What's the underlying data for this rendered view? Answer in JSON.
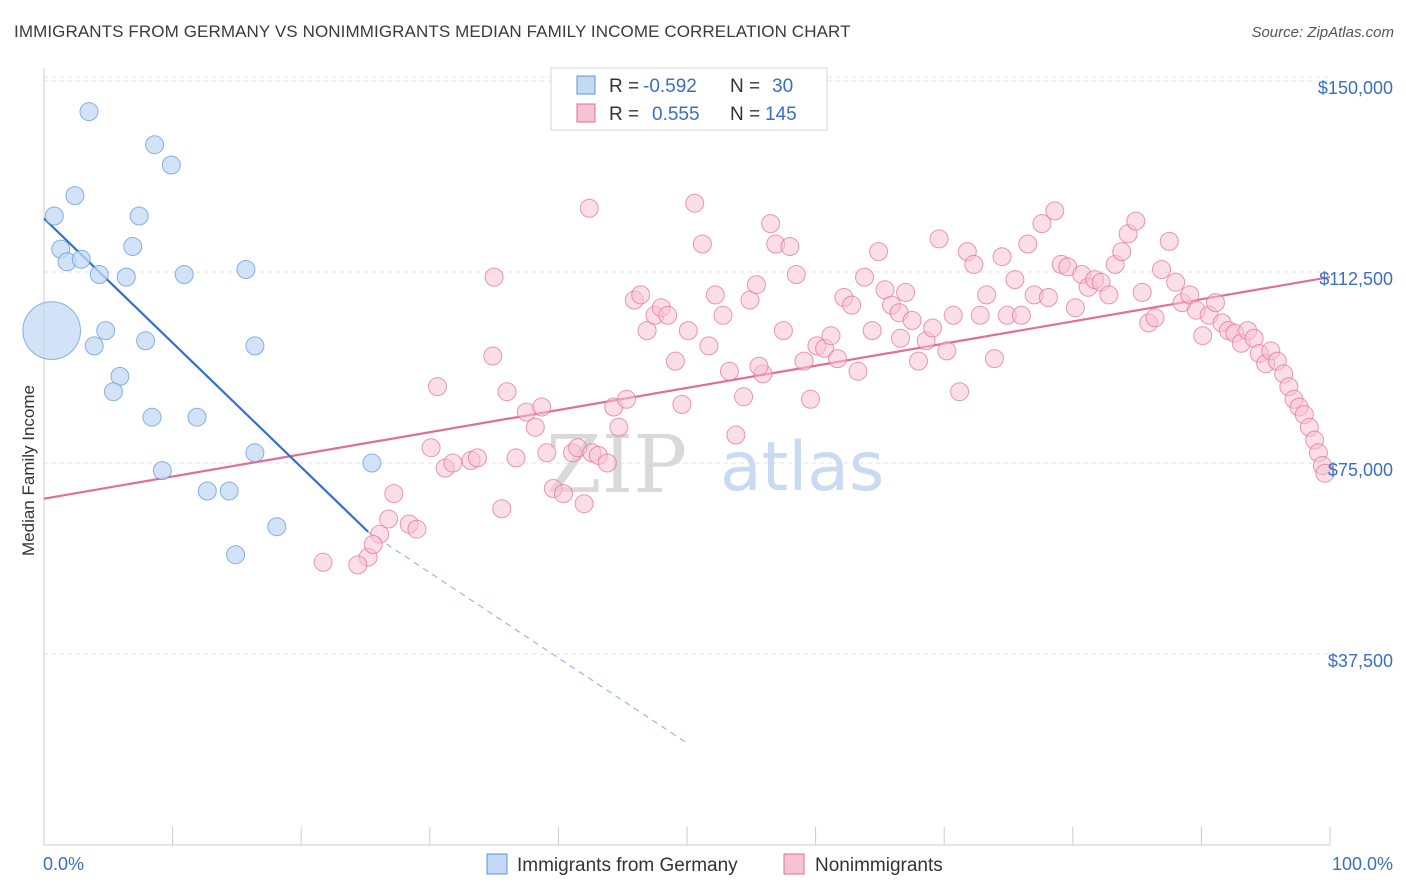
{
  "title": "IMMIGRANTS FROM GERMANY VS NONIMMIGRANTS MEDIAN FAMILY INCOME CORRELATION CHART",
  "source": "Source: ZipAtlas.com",
  "colors": {
    "blue": "#5b93d8",
    "blue_fill": "#c4d9f4",
    "pink": "#e26d97",
    "pink_fill": "#f7c3d4",
    "tick_text": "#3a6fc4"
  },
  "chart_data": {
    "type": "scatter",
    "title": "IMMIGRANTS FROM GERMANY VS NONIMMIGRANTS MEDIAN FAMILY INCOME CORRELATION CHART",
    "xlabel": "",
    "ylabel": "Median Family Income",
    "xlim": [
      0,
      100
    ],
    "ylim": [
      20000,
      157000
    ],
    "x_tick_labels": [
      "0.0%",
      "100.0%"
    ],
    "y_ticks": [
      37500,
      75000,
      112500,
      150000
    ],
    "y_tick_labels": [
      "$37,500",
      "$75,000",
      "$112,500",
      "$150,000"
    ],
    "grid": true,
    "legend": {
      "position": "top-center",
      "entries": [
        {
          "r_label": "R =",
          "r_value": "-0.592",
          "n_label": "N =",
          "n_value": "30"
        },
        {
          "r_label": "R =",
          "r_value": "0.555",
          "n_label": "N =",
          "n_value": "145"
        }
      ]
    },
    "bottom_legend": [
      "Immigrants from Germany",
      "Nonimmigrants"
    ],
    "watermark": {
      "zip": "ZIP",
      "atlas": "atlas"
    },
    "series": [
      {
        "name": "Immigrants from Germany",
        "color": "#5b93d8",
        "fill": "#c4d9f4",
        "points": [
          [
            0.6,
            101000,
            3.2
          ],
          [
            3.5,
            144000,
            1
          ],
          [
            8.6,
            137500,
            1
          ],
          [
            9.9,
            133500,
            1
          ],
          [
            2.4,
            127500,
            1
          ],
          [
            0.8,
            123500,
            1
          ],
          [
            7.4,
            123500,
            1
          ],
          [
            1.3,
            117000,
            1
          ],
          [
            6.9,
            117500,
            1
          ],
          [
            1.8,
            114500,
            1
          ],
          [
            2.9,
            115000,
            1
          ],
          [
            4.3,
            112000,
            1
          ],
          [
            6.4,
            111500,
            1
          ],
          [
            10.9,
            112000,
            1
          ],
          [
            15.7,
            113000,
            1
          ],
          [
            4.8,
            101000,
            1
          ],
          [
            3.9,
            98000,
            1
          ],
          [
            7.9,
            99000,
            1
          ],
          [
            16.4,
            98000,
            1
          ],
          [
            5.9,
            92000,
            1
          ],
          [
            5.4,
            89000,
            1
          ],
          [
            8.4,
            84000,
            1
          ],
          [
            11.9,
            84000,
            1
          ],
          [
            16.4,
            77000,
            1
          ],
          [
            9.2,
            73500,
            1
          ],
          [
            25.5,
            75000,
            1
          ],
          [
            12.7,
            69500,
            1
          ],
          [
            14.4,
            69500,
            1
          ],
          [
            18.1,
            62500,
            1
          ],
          [
            14.9,
            57000,
            1
          ]
        ]
      },
      {
        "name": "Nonimmigrants",
        "color": "#e26d97",
        "fill": "#f7c3d4",
        "points": [
          [
            21.7,
            55500
          ],
          [
            25.2,
            56500
          ],
          [
            24.4,
            55000
          ],
          [
            26.1,
            61000
          ],
          [
            26.8,
            64000
          ],
          [
            25.6,
            59000
          ],
          [
            28.4,
            63000
          ],
          [
            29.0,
            62000
          ],
          [
            27.2,
            69000
          ],
          [
            30.1,
            78000
          ],
          [
            30.6,
            90000
          ],
          [
            31.2,
            74000
          ],
          [
            31.8,
            75000
          ],
          [
            33.2,
            75500
          ],
          [
            33.7,
            76000
          ],
          [
            34.9,
            96000
          ],
          [
            35.0,
            111500
          ],
          [
            35.6,
            66000
          ],
          [
            36.0,
            89000
          ],
          [
            36.7,
            76000
          ],
          [
            37.5,
            85000
          ],
          [
            38.2,
            82000
          ],
          [
            38.7,
            86000
          ],
          [
            39.1,
            77000
          ],
          [
            39.6,
            70000
          ],
          [
            40.4,
            69000
          ],
          [
            41.1,
            77000
          ],
          [
            41.5,
            78000
          ],
          [
            42.0,
            67000
          ],
          [
            42.4,
            125000
          ],
          [
            42.6,
            77000
          ],
          [
            43.1,
            76500
          ],
          [
            43.8,
            75000
          ],
          [
            44.3,
            86000
          ],
          [
            44.7,
            82000
          ],
          [
            45.3,
            87500
          ],
          [
            45.9,
            107000
          ],
          [
            46.4,
            108000
          ],
          [
            46.9,
            101000
          ],
          [
            47.5,
            104000
          ],
          [
            48.0,
            105500
          ],
          [
            48.5,
            104000
          ],
          [
            49.1,
            95000
          ],
          [
            49.6,
            86500
          ],
          [
            50.1,
            101000
          ],
          [
            50.6,
            126000
          ],
          [
            51.2,
            118000
          ],
          [
            51.7,
            98000
          ],
          [
            52.2,
            108000
          ],
          [
            52.8,
            104000
          ],
          [
            53.3,
            93000
          ],
          [
            53.8,
            80500
          ],
          [
            54.4,
            88000
          ],
          [
            54.9,
            107000
          ],
          [
            55.4,
            110000
          ],
          [
            55.9,
            92500
          ],
          [
            56.5,
            122000
          ],
          [
            56.9,
            118000
          ],
          [
            57.5,
            101000
          ],
          [
            58.0,
            117500
          ],
          [
            58.5,
            112000
          ],
          [
            59.1,
            95000
          ],
          [
            59.6,
            87500
          ],
          [
            60.1,
            98000
          ],
          [
            60.7,
            97500
          ],
          [
            61.2,
            100000
          ],
          [
            61.7,
            95500
          ],
          [
            62.2,
            107500
          ],
          [
            62.8,
            106000
          ],
          [
            63.3,
            93000
          ],
          [
            63.8,
            111500
          ],
          [
            64.4,
            101000
          ],
          [
            64.9,
            116500
          ],
          [
            65.4,
            109000
          ],
          [
            65.9,
            106000
          ],
          [
            66.5,
            104500
          ],
          [
            67.0,
            108500
          ],
          [
            67.5,
            103000
          ],
          [
            68.0,
            95000
          ],
          [
            68.6,
            99000
          ],
          [
            69.1,
            101500
          ],
          [
            69.6,
            119000
          ],
          [
            70.2,
            97000
          ],
          [
            70.7,
            104000
          ],
          [
            71.2,
            89000
          ],
          [
            71.8,
            116500
          ],
          [
            72.3,
            114000
          ],
          [
            72.8,
            104000
          ],
          [
            73.3,
            108000
          ],
          [
            73.9,
            95500
          ],
          [
            74.5,
            115500
          ],
          [
            74.9,
            104000
          ],
          [
            75.5,
            111000
          ],
          [
            76.0,
            104000
          ],
          [
            76.5,
            118000
          ],
          [
            77.0,
            108000
          ],
          [
            77.6,
            122000
          ],
          [
            78.1,
            107500
          ],
          [
            78.6,
            124500
          ],
          [
            79.1,
            114000
          ],
          [
            79.6,
            113500
          ],
          [
            80.2,
            105500
          ],
          [
            80.7,
            112000
          ],
          [
            81.2,
            109500
          ],
          [
            81.7,
            111000
          ],
          [
            82.2,
            110500
          ],
          [
            82.8,
            108000
          ],
          [
            83.3,
            114000
          ],
          [
            83.8,
            116500
          ],
          [
            84.3,
            120000
          ],
          [
            84.9,
            122500
          ],
          [
            85.4,
            108500
          ],
          [
            85.9,
            102500
          ],
          [
            86.4,
            103500
          ],
          [
            86.9,
            113000
          ],
          [
            87.5,
            118500
          ],
          [
            88.0,
            110500
          ],
          [
            88.5,
            106500
          ],
          [
            89.1,
            108000
          ],
          [
            89.6,
            105000
          ],
          [
            90.1,
            100000
          ],
          [
            90.6,
            104000
          ],
          [
            91.1,
            106500
          ],
          [
            91.6,
            102500
          ],
          [
            92.1,
            101000
          ],
          [
            92.6,
            100500
          ],
          [
            93.1,
            98500
          ],
          [
            93.6,
            101000
          ],
          [
            94.1,
            99500
          ],
          [
            94.5,
            96500
          ],
          [
            95.0,
            94500
          ],
          [
            95.4,
            97000
          ],
          [
            95.9,
            95000
          ],
          [
            96.4,
            92500
          ],
          [
            96.8,
            90000
          ],
          [
            97.2,
            87500
          ],
          [
            97.6,
            86000
          ],
          [
            98.0,
            84500
          ],
          [
            98.4,
            82000
          ],
          [
            98.8,
            79500
          ],
          [
            99.1,
            77000
          ],
          [
            99.4,
            74500
          ],
          [
            99.6,
            73000
          ],
          [
            55.6,
            94000
          ],
          [
            66.6,
            99500
          ]
        ]
      }
    ],
    "trend_lines": [
      {
        "series": "Immigrants from Germany",
        "solid": [
          [
            0,
            123000
          ],
          [
            25.2,
            61500
          ]
        ],
        "dashed": [
          [
            25.2,
            61500
          ],
          [
            50.0,
            20000
          ]
        ]
      },
      {
        "series": "Nonimmigrants",
        "solid": [
          [
            0,
            68000
          ],
          [
            100,
            111500
          ]
        ]
      }
    ]
  }
}
